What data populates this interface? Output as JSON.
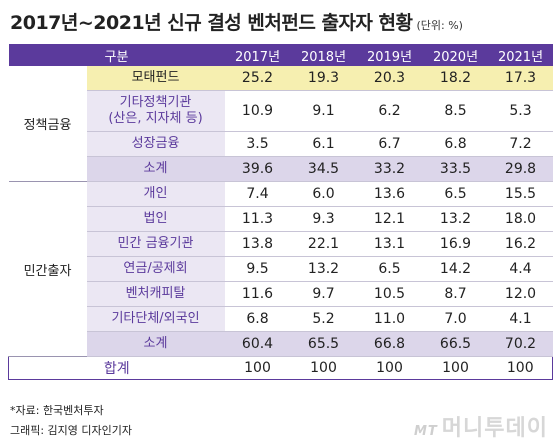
{
  "title": "2017년~2021년 신규 결성 벤처펀드 출자자 현황",
  "unit": "(단위: %)",
  "chart_data": {
    "type": "table",
    "header": [
      "구분",
      "2017년",
      "2018년",
      "2019년",
      "2020년",
      "2021년"
    ],
    "groups": [
      {
        "name": "정책금융",
        "rows": [
          {
            "label": "모태펀드",
            "values": [
              "25.2",
              "19.3",
              "20.3",
              "18.2",
              "17.3"
            ],
            "highlight": true
          },
          {
            "label": "기타정책기관\n(산은, 지자체 등)",
            "values": [
              "10.9",
              "9.1",
              "6.2",
              "8.5",
              "5.3"
            ]
          },
          {
            "label": "성장금융",
            "values": [
              "3.5",
              "6.1",
              "6.7",
              "6.8",
              "7.2"
            ]
          },
          {
            "label": "소계",
            "values": [
              "39.6",
              "34.5",
              "33.2",
              "33.5",
              "29.8"
            ],
            "subtotal": true
          }
        ]
      },
      {
        "name": "민간출자",
        "rows": [
          {
            "label": "개인",
            "values": [
              "7.4",
              "6.0",
              "13.6",
              "6.5",
              "15.5"
            ]
          },
          {
            "label": "법인",
            "values": [
              "11.3",
              "9.3",
              "12.1",
              "13.2",
              "18.0"
            ]
          },
          {
            "label": "민간 금융기관",
            "values": [
              "13.8",
              "22.1",
              "13.1",
              "16.9",
              "16.2"
            ]
          },
          {
            "label": "연금/공제회",
            "values": [
              "9.5",
              "13.2",
              "6.5",
              "14.2",
              "4.4"
            ]
          },
          {
            "label": "벤처캐피탈",
            "values": [
              "11.6",
              "9.7",
              "10.5",
              "8.7",
              "12.0"
            ]
          },
          {
            "label": "기타단체/외국인",
            "values": [
              "6.8",
              "5.2",
              "11.0",
              "7.0",
              "4.1"
            ]
          },
          {
            "label": "소계",
            "values": [
              "60.4",
              "65.5",
              "66.8",
              "66.5",
              "70.2"
            ],
            "subtotal": true
          }
        ]
      }
    ],
    "total": {
      "label": "합계",
      "values": [
        "100",
        "100",
        "100",
        "100",
        "100"
      ]
    }
  },
  "source": "*자료: 한국벤처투자",
  "credit": "그래픽: 김지영 디자인기자",
  "logo": {
    "mark": "MT",
    "text": "머니투데이"
  },
  "colors": {
    "accent": "#5b3a9c",
    "category_bg": "#ebe7f3",
    "highlight": "#f6efb0",
    "subtotal": "#dcd6ea"
  }
}
